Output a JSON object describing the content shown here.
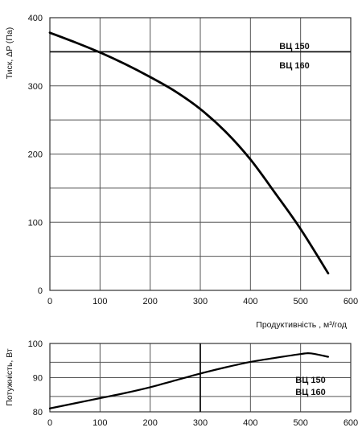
{
  "chart_data": [
    {
      "type": "line",
      "ylabel": "Тиск, ΔP (Па)",
      "xlabel": "Продуктивність , м³/год",
      "xlim": [
        0,
        600
      ],
      "ylim": [
        0,
        400
      ],
      "x_ticks": [
        "0",
        "100",
        "200",
        "300",
        "400",
        "500",
        "600"
      ],
      "y_ticks": [
        "0",
        "100",
        "200",
        "300",
        "400"
      ],
      "grid": true,
      "series": [
        {
          "x": [
            0,
            50,
            100,
            150,
            200,
            250,
            300,
            350,
            400,
            450,
            500,
            555
          ],
          "y": [
            378,
            364,
            349,
            332,
            313,
            292,
            266,
            233,
            192,
            142,
            90,
            25
          ]
        }
      ],
      "reference_line": {
        "y": 350
      },
      "series_labels": [
        "ВЦ 150",
        "ВЦ 160"
      ]
    },
    {
      "type": "line",
      "ylabel": "Потужність, Вт",
      "xlim": [
        0,
        600
      ],
      "ylim": [
        80,
        100
      ],
      "x_ticks": [
        "0",
        "100",
        "200",
        "300",
        "400",
        "500",
        "600"
      ],
      "y_ticks": [
        "80",
        "90",
        "100"
      ],
      "grid": true,
      "series": [
        {
          "x": [
            0,
            50,
            100,
            150,
            200,
            250,
            300,
            350,
            400,
            450,
            500,
            520,
            555
          ],
          "y": [
            81,
            82.5,
            84,
            85.5,
            87.2,
            89.2,
            91.2,
            93,
            94.6,
            95.8,
            96.9,
            97.1,
            96.1
          ]
        }
      ],
      "reference_line": {
        "x": 300
      },
      "series_labels": [
        "ВЦ 150",
        "ВЦ 160"
      ]
    }
  ]
}
